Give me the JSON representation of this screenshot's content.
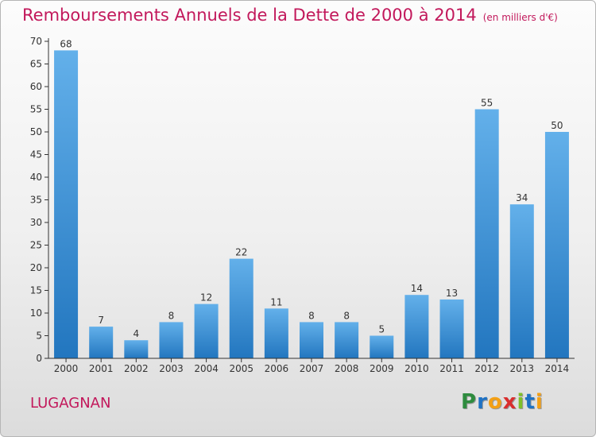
{
  "header": {
    "title": "Remboursements Annuels de la Dette de 2000 à 2014",
    "unit": "(en milliers d'€)"
  },
  "footer": {
    "commune": "LUGAGNAN",
    "logo": [
      "P",
      "r",
      "o",
      "x",
      "i",
      "t",
      "i"
    ],
    "logo_colors": [
      "#2e8b3e",
      "#1f72c4",
      "#f4a015",
      "#d92e2e",
      "#7fbf2a",
      "#1f72c4",
      "#f4a015"
    ]
  },
  "colors": {
    "bar_light": "#63b0ea",
    "bar_dark": "#2276bf",
    "axis": "#333333",
    "grid": "#dddddd"
  },
  "chart_data": {
    "type": "bar",
    "categories": [
      "2000",
      "2001",
      "2002",
      "2003",
      "2004",
      "2005",
      "2006",
      "2007",
      "2008",
      "2009",
      "2010",
      "2011",
      "2012",
      "2013",
      "2014"
    ],
    "values": [
      68,
      7,
      4,
      8,
      12,
      22,
      11,
      8,
      8,
      5,
      14,
      13,
      55,
      34,
      50
    ],
    "ylim": [
      0,
      70
    ],
    "yticks": [
      0,
      5,
      10,
      15,
      20,
      25,
      30,
      35,
      40,
      45,
      50,
      55,
      60,
      65,
      70
    ],
    "grid": false,
    "data_labels": true
  }
}
